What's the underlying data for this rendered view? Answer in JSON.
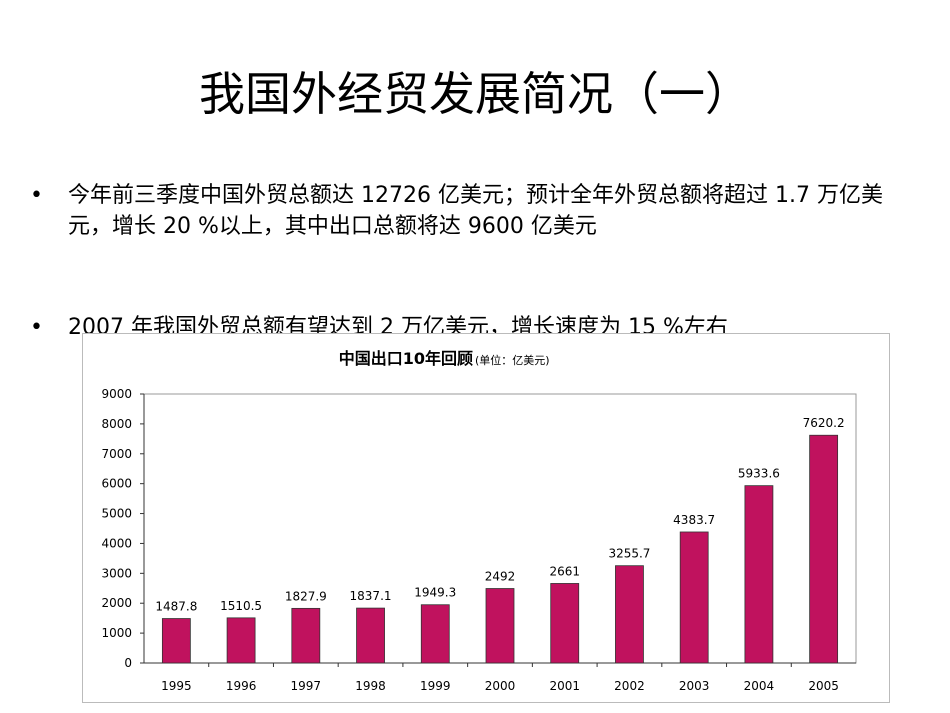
{
  "slide": {
    "title": "我国外经贸发展简况（一）",
    "bullets": [
      {
        "marker": "•",
        "text": "今年前三季度中国外贸总额达 12726 亿美元；预计全年外贸总额将超过 1.7 万亿美元，增长 20 %以上，其中出口总额将达 9600 亿美元"
      },
      {
        "marker": "•",
        "text": "2007 年我国外贸总额有望达到 2 万亿美元，增长速度为 15 %左右"
      }
    ]
  },
  "chart_data": {
    "type": "bar",
    "title": "中国出口10年回顾",
    "subtitle": "(单位：亿美元)",
    "categories": [
      "1995",
      "1996",
      "1997",
      "1998",
      "1999",
      "2000",
      "2001",
      "2002",
      "2003",
      "2004",
      "2005"
    ],
    "values": [
      1487.8,
      1510.5,
      1827.9,
      1837.1,
      1949.3,
      2492,
      2661,
      3255.7,
      4383.7,
      5933.6,
      7620.2
    ],
    "data_labels": [
      "1487.8",
      "1510.5",
      "1827.9",
      "1837.1",
      "1949.3",
      "2492",
      "2661",
      "3255.7",
      "4383.7",
      "5933.6",
      "7620.2"
    ],
    "ylim": [
      0,
      9000
    ],
    "yticks": [
      "0",
      "1000",
      "2000",
      "3000",
      "4000",
      "5000",
      "6000",
      "7000",
      "8000",
      "9000"
    ],
    "grid": false,
    "bar_color": "#c0125e"
  }
}
